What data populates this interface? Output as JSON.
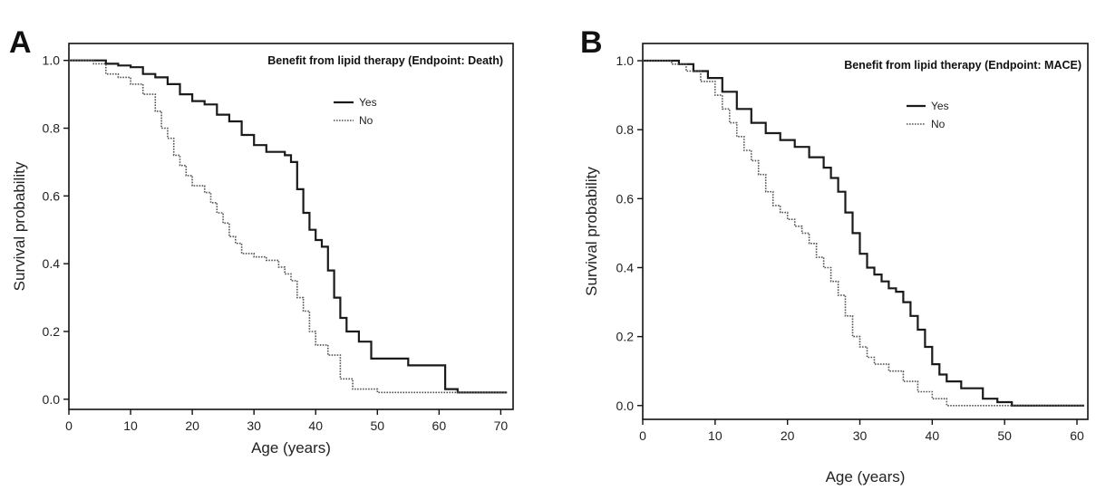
{
  "chart_data": [
    {
      "panel": "A",
      "type": "line",
      "title": "Benefit from lipid therapy (Endpoint: Death)",
      "xlabel": "Age (years)",
      "ylabel": "Survival probability",
      "xlim": [
        0,
        72
      ],
      "ylim": [
        -0.03,
        1.05
      ],
      "xticks": [
        0,
        10,
        20,
        30,
        40,
        50,
        60,
        70
      ],
      "yticks": [
        0.0,
        0.2,
        0.4,
        0.6,
        0.8,
        1.0
      ],
      "ytick_labels": [
        "0.0",
        "0.2",
        "0.4",
        "0.6",
        "0.8",
        "1.0"
      ],
      "legend_placement": "top-right",
      "step": true,
      "series": [
        {
          "name": "Yes",
          "style": "solid",
          "x": [
            0,
            6,
            8,
            10,
            12,
            14,
            16,
            18,
            20,
            22,
            24,
            26,
            28,
            30,
            32,
            34,
            35,
            36,
            37,
            38,
            39,
            40,
            41,
            42,
            43,
            44,
            45,
            47,
            49,
            55,
            61,
            63,
            71
          ],
          "y": [
            1.0,
            0.99,
            0.985,
            0.98,
            0.96,
            0.95,
            0.93,
            0.9,
            0.88,
            0.87,
            0.84,
            0.82,
            0.78,
            0.75,
            0.73,
            0.73,
            0.72,
            0.7,
            0.62,
            0.55,
            0.5,
            0.47,
            0.45,
            0.38,
            0.3,
            0.24,
            0.2,
            0.17,
            0.12,
            0.1,
            0.03,
            0.02,
            0.02
          ]
        },
        {
          "name": "No",
          "style": "dotted",
          "x": [
            0,
            4,
            6,
            8,
            10,
            12,
            14,
            15,
            16,
            17,
            18,
            19,
            20,
            22,
            23,
            24,
            25,
            26,
            27,
            28,
            30,
            32,
            34,
            35,
            36,
            37,
            38,
            39,
            40,
            42,
            44,
            46,
            50,
            71
          ],
          "y": [
            1.0,
            0.99,
            0.96,
            0.95,
            0.93,
            0.9,
            0.85,
            0.8,
            0.77,
            0.72,
            0.69,
            0.66,
            0.63,
            0.61,
            0.58,
            0.55,
            0.52,
            0.48,
            0.46,
            0.43,
            0.42,
            0.41,
            0.39,
            0.37,
            0.35,
            0.3,
            0.26,
            0.2,
            0.16,
            0.13,
            0.06,
            0.03,
            0.02,
            0.02
          ]
        }
      ]
    },
    {
      "panel": "B",
      "type": "line",
      "title": "Benefit from lipid therapy (Endpoint: MACE)",
      "xlabel": "Age (years)",
      "ylabel": "Survival probability",
      "xlim": [
        0,
        61.5
      ],
      "ylim": [
        -0.04,
        1.05
      ],
      "xticks": [
        0,
        10,
        20,
        30,
        40,
        50,
        60
      ],
      "yticks": [
        0.0,
        0.2,
        0.4,
        0.6,
        0.8,
        1.0
      ],
      "ytick_labels": [
        "0.0",
        "0.2",
        "0.4",
        "0.6",
        "0.8",
        "1.0"
      ],
      "legend_placement": "top-right",
      "step": true,
      "series": [
        {
          "name": "Yes",
          "style": "solid",
          "x": [
            0,
            5,
            7,
            9,
            11,
            13,
            15,
            17,
            19,
            21,
            23,
            25,
            26,
            27,
            28,
            29,
            30,
            31,
            32,
            33,
            34,
            35,
            36,
            37,
            38,
            39,
            40,
            41,
            42,
            44,
            47,
            49,
            51,
            61
          ],
          "y": [
            1.0,
            0.99,
            0.97,
            0.95,
            0.91,
            0.86,
            0.82,
            0.79,
            0.77,
            0.75,
            0.72,
            0.69,
            0.66,
            0.62,
            0.56,
            0.5,
            0.44,
            0.4,
            0.38,
            0.36,
            0.34,
            0.33,
            0.3,
            0.26,
            0.22,
            0.17,
            0.12,
            0.09,
            0.07,
            0.05,
            0.02,
            0.01,
            0.0,
            0.0
          ]
        },
        {
          "name": "No",
          "style": "dotted",
          "x": [
            0,
            4,
            6,
            8,
            10,
            11,
            12,
            13,
            14,
            15,
            16,
            17,
            18,
            19,
            20,
            21,
            22,
            23,
            24,
            25,
            26,
            27,
            28,
            29,
            30,
            31,
            32,
            34,
            36,
            38,
            40,
            42,
            61
          ],
          "y": [
            1.0,
            0.99,
            0.97,
            0.94,
            0.9,
            0.86,
            0.82,
            0.78,
            0.74,
            0.71,
            0.67,
            0.62,
            0.58,
            0.56,
            0.54,
            0.52,
            0.5,
            0.47,
            0.43,
            0.4,
            0.36,
            0.32,
            0.26,
            0.2,
            0.17,
            0.14,
            0.12,
            0.1,
            0.07,
            0.04,
            0.02,
            0.0,
            0.0
          ]
        }
      ]
    }
  ]
}
